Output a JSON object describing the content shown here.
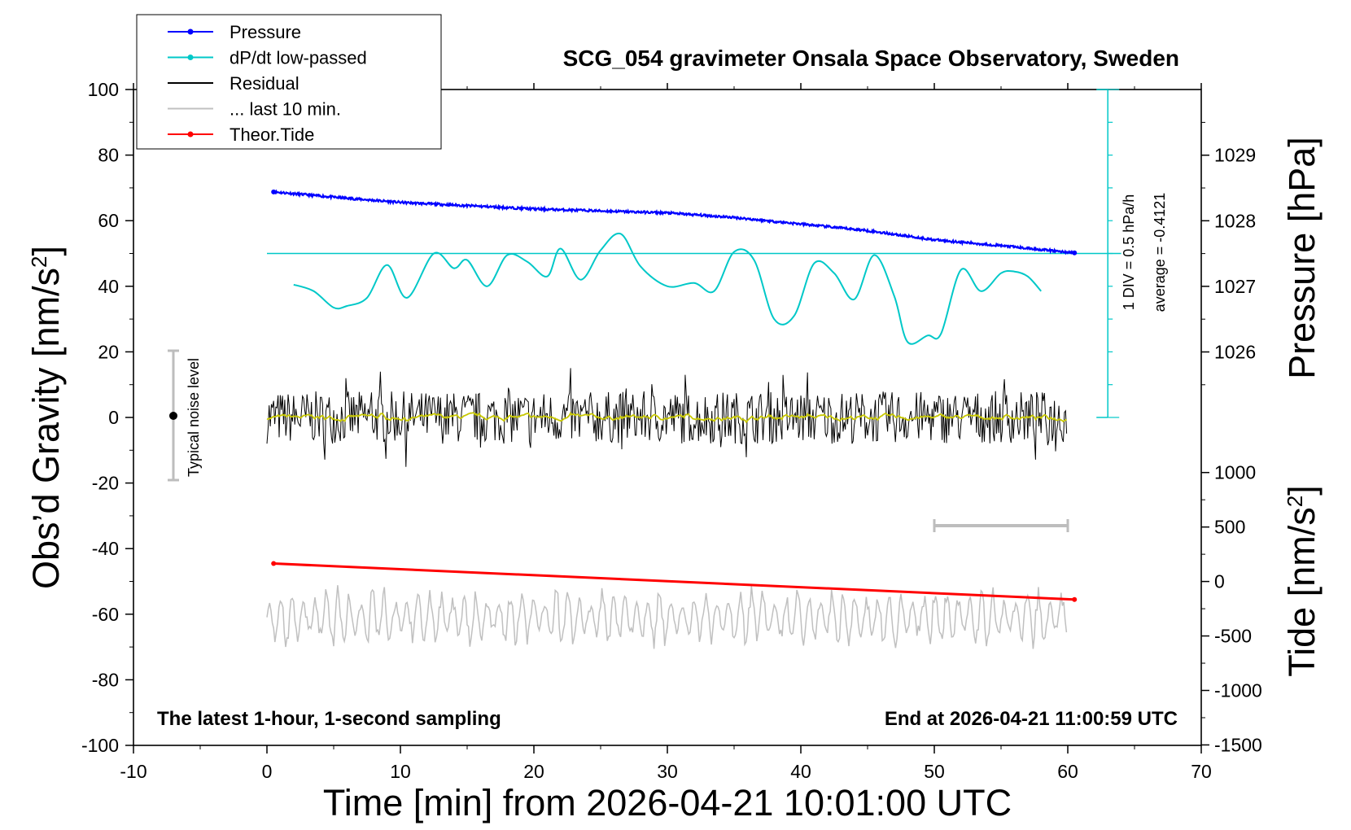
{
  "chart_data": {
    "type": "line",
    "title": "SCG_054 gravimeter Onsala Space Observatory, Sweden",
    "xlabel": "Time [min] from 2026-04-21 10:01:00 UTC",
    "xlim": [
      -10,
      70
    ],
    "xticks": [
      "-10",
      "0",
      "10",
      "20",
      "30",
      "40",
      "50",
      "60",
      "70"
    ],
    "left_axis": {
      "label": "Obs’d Gravity [nm/s",
      "label_sup": "2",
      "label_end": "]",
      "ylim": [
        -100,
        100
      ],
      "ticks": [
        "100",
        "80",
        "60",
        "40",
        "20",
        "0",
        "-20",
        "-40",
        "-60",
        "-80",
        "-100"
      ]
    },
    "pressure_axis": {
      "label": "Pressure [hPa]",
      "ticks": [
        "1029",
        "1028",
        "1027",
        "1026"
      ],
      "tick_values": [
        1029,
        1028,
        1027,
        1026
      ]
    },
    "tide_axis": {
      "label": "Tide [nm/s",
      "label_sup": "2",
      "label_end": "]",
      "ticks": [
        "1000",
        "500",
        "0",
        "-500",
        "-1000",
        "-1500"
      ],
      "tick_values": [
        1000,
        500,
        0,
        -500,
        -1000,
        -1500
      ]
    },
    "legend": {
      "placement": "top-left",
      "entries": [
        {
          "label": "Pressure",
          "color": "#0000ff",
          "marker": true
        },
        {
          "label": "dP/dt low-passed",
          "color": "#00c8c8",
          "marker": true
        },
        {
          "label": "Residual",
          "color": "#000000",
          "marker": false
        },
        {
          "label": "... last 10 min.",
          "color": "#c0c0c0",
          "marker": false
        },
        {
          "label": "Theor.Tide",
          "color": "#ff0000",
          "marker": true
        }
      ]
    },
    "noise_level_label": "Typical noise level",
    "noise_level_range": [
      -20,
      20
    ],
    "dpdt_scale_label": "1 DIV = 0.5 hPa/h",
    "dpdt_average_label": "average = -0.4121",
    "footer_left": "The latest 1-hour, 1-second sampling",
    "footer_right": "End at 2026-04-21 11:00:59 UTC",
    "series": [
      {
        "name": "Pressure",
        "unit": "hPa",
        "color": "#0000ff",
        "x": [
          0.5,
          5,
          10,
          15,
          20,
          25,
          30,
          35,
          40,
          45,
          50,
          55,
          60.5
        ],
        "values": [
          1028.44,
          1028.36,
          1028.28,
          1028.23,
          1028.18,
          1028.15,
          1028.12,
          1028.05,
          1027.95,
          1027.85,
          1027.71,
          1027.62,
          1027.51
        ]
      },
      {
        "name": "dP/dt low-passed",
        "color": "#00c8c8",
        "x": [
          2,
          3.5,
          5,
          6,
          7.5,
          9,
          10.5,
          12.5,
          14,
          15,
          16.5,
          18,
          19.5,
          21,
          22,
          23.5,
          25,
          26.5,
          28,
          30,
          32,
          33.5,
          35,
          36.5,
          38,
          39.5,
          41,
          42.5,
          44,
          45.5,
          47,
          48,
          49.5,
          50.5,
          52,
          53.5,
          55,
          56,
          57,
          58
        ],
        "values": [
          40.5,
          38.5,
          33.5,
          34,
          36.5,
          46.5,
          36.5,
          50,
          45.5,
          48,
          40,
          49.5,
          47.5,
          43,
          51.5,
          42,
          51,
          56,
          46,
          40,
          41,
          38.5,
          50.5,
          48,
          30,
          31,
          47,
          44,
          36,
          49.5,
          37,
          23,
          25,
          25.5,
          45,
          38.5,
          44,
          44.5,
          43,
          38.5
        ]
      },
      {
        "name": "Residual",
        "color": "#000000",
        "x_range": [
          0,
          60
        ],
        "amplitude_typical": 8,
        "amplitude_max": 16
      },
      {
        "name": "... last 10 min.",
        "color": "#c0c0c0",
        "x_range": [
          0,
          60
        ],
        "center": -61,
        "amplitude_typical": 8,
        "amplitude_max": 17
      },
      {
        "name": "Theor.Tide",
        "unit": "nm/s2",
        "color": "#ff0000",
        "x": [
          0.5,
          60.5
        ],
        "values": [
          165,
          -165
        ]
      }
    ],
    "residual_smoothed_color": "#c8c800",
    "dpdt_reference_level": 50,
    "tenmin_marker_range": [
      50,
      60
    ],
    "tenmin_marker_level": -33
  }
}
